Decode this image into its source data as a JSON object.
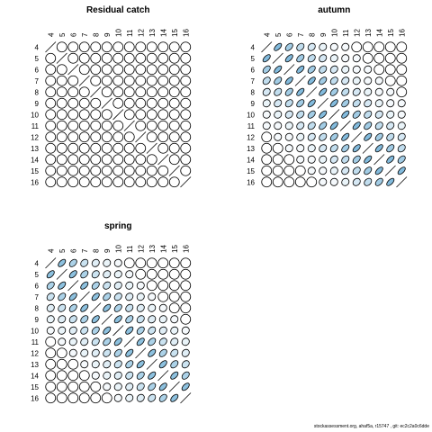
{
  "chart_data": [
    {
      "type": "heatmap",
      "title": "Residual catch",
      "labels": [
        "4",
        "5",
        "6",
        "7",
        "8",
        "9",
        "10",
        "11",
        "12",
        "13",
        "14",
        "15",
        "16"
      ],
      "cells": "correlation ellipses",
      "value_range": [
        -1,
        1
      ],
      "upper": [
        [
          0,
          0,
          0,
          0,
          0,
          0,
          0,
          0,
          0,
          0,
          0,
          0
        ],
        [
          0,
          0,
          0,
          0,
          0,
          0,
          0,
          0,
          0,
          0,
          0
        ],
        [
          0,
          0,
          0,
          0,
          0,
          0,
          0,
          0,
          0,
          0
        ],
        [
          0,
          0,
          0,
          0,
          0,
          0,
          0,
          0,
          0
        ],
        [
          0,
          0,
          0,
          0,
          0,
          0,
          0,
          0
        ],
        [
          0,
          0,
          0,
          0,
          0,
          0,
          0
        ],
        [
          0,
          0,
          0,
          0,
          0,
          0
        ],
        [
          0,
          0,
          0,
          0,
          0
        ],
        [
          0,
          0,
          0,
          0
        ],
        [
          0,
          0,
          0
        ],
        [
          0,
          0
        ],
        [
          0
        ]
      ]
    },
    {
      "type": "heatmap",
      "title": "autumn",
      "labels": [
        "4",
        "5",
        "6",
        "7",
        "8",
        "9",
        "10",
        "11",
        "12",
        "13",
        "14",
        "15",
        "16"
      ],
      "cells": "correlation ellipses",
      "value_range": [
        -1,
        1
      ],
      "upper": [
        [
          0.6,
          0.45,
          0.3,
          0.2,
          0.1,
          0.05,
          0.05,
          0,
          0,
          0,
          0,
          0
        ],
        [
          0.6,
          0.45,
          0.3,
          0.2,
          0.1,
          0.05,
          0.05,
          0,
          0,
          0,
          0
        ],
        [
          0.6,
          0.45,
          0.3,
          0.2,
          0.1,
          0.05,
          0.05,
          0,
          0,
          0
        ],
        [
          0.6,
          0.45,
          0.3,
          0.2,
          0.1,
          0.05,
          0.05,
          0,
          0
        ],
        [
          0.6,
          0.45,
          0.3,
          0.2,
          0.1,
          0.05,
          0.05,
          0
        ],
        [
          0.6,
          0.45,
          0.3,
          0.2,
          0.1,
          0.05,
          0.05
        ],
        [
          0.6,
          0.45,
          0.3,
          0.2,
          0.1,
          0.05
        ],
        [
          0.6,
          0.45,
          0.3,
          0.2,
          0.1
        ],
        [
          0.6,
          0.45,
          0.3,
          0.2
        ],
        [
          0.6,
          0.45,
          0.3
        ],
        [
          0.6,
          0.45
        ],
        [
          0.6
        ]
      ]
    },
    {
      "type": "heatmap",
      "title": "spring",
      "labels": [
        "4",
        "5",
        "6",
        "7",
        "8",
        "9",
        "10",
        "11",
        "12",
        "13",
        "14",
        "15",
        "16"
      ],
      "cells": "correlation ellipses",
      "value_range": [
        -1,
        1
      ],
      "upper": [
        [
          0.55,
          0.4,
          0.25,
          0.15,
          0.1,
          0.05,
          0,
          0,
          0,
          0,
          0,
          0
        ],
        [
          0.55,
          0.4,
          0.25,
          0.15,
          0.1,
          0.05,
          0,
          0,
          0,
          0,
          0
        ],
        [
          0.55,
          0.4,
          0.25,
          0.15,
          0.1,
          0.05,
          0,
          0,
          0,
          0
        ],
        [
          0.55,
          0.4,
          0.25,
          0.15,
          0.1,
          0.05,
          0,
          0,
          0
        ],
        [
          0.55,
          0.4,
          0.25,
          0.15,
          0.1,
          0.05,
          0,
          0
        ],
        [
          0.55,
          0.4,
          0.25,
          0.15,
          0.1,
          0.05,
          0
        ],
        [
          0.55,
          0.4,
          0.25,
          0.15,
          0.1,
          0.05
        ],
        [
          0.55,
          0.4,
          0.25,
          0.15,
          0.1
        ],
        [
          0.55,
          0.4,
          0.25,
          0.15
        ],
        [
          0.55,
          0.4,
          0.25
        ],
        [
          0.55,
          0.4
        ],
        [
          0.55
        ]
      ]
    }
  ],
  "colors": {
    "positive_fill": "#6baed6",
    "stroke": "#000000",
    "background": "#ffffff"
  },
  "footer": "stockassessment.org, ahaf5a, r15747 , git: ec2c2a0c6dde"
}
